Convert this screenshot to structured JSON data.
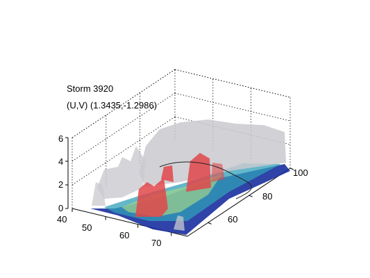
{
  "chart_data": {
    "type": "surface3d",
    "title": "",
    "annotation": {
      "storm_label": "Storm 3920",
      "uv_label": "(U,V) (1.3435,-1.2986)"
    },
    "axes": {
      "x": {
        "label": "",
        "range": [
          40,
          75
        ],
        "ticks": [
          40,
          50,
          60,
          70
        ]
      },
      "y": {
        "label": "",
        "range": [
          50,
          100
        ],
        "ticks": [
          60,
          80,
          100
        ]
      },
      "z": {
        "label": "",
        "range": [
          0,
          6
        ],
        "ticks": [
          0,
          2,
          4,
          6
        ]
      }
    },
    "grid": true,
    "layers": [
      {
        "name": "",
        "color": "#1a2f9e",
        "level": 0.3
      },
      {
        "name": "",
        "color": "#2f9fb8",
        "level": 1.0
      },
      {
        "name": "",
        "color": "#9fd48a",
        "level": 1.6
      },
      {
        "name": "",
        "color": "#c9c9cf",
        "level": 3.5
      },
      {
        "name": "",
        "color": "#e0474a",
        "level": 4.0
      }
    ]
  }
}
